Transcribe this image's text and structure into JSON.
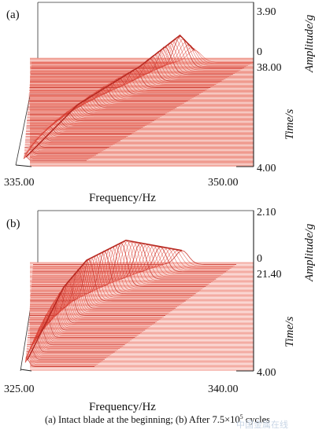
{
  "chart_data": [
    {
      "type": "waterfall",
      "panel_label": "(a)",
      "xlabel": "Frequency/Hz",
      "x_ticks": [
        "335.00",
        "350.00"
      ],
      "xlim": [
        335.0,
        350.0
      ],
      "ylabel": "Time/s",
      "y_ticks": [
        "38.00",
        "4.00"
      ],
      "ylim": [
        4.0,
        38.0
      ],
      "zlabel": "Amplitude/g",
      "z_ticks": [
        "3.90",
        "0"
      ],
      "zlim": [
        0,
        3.9
      ],
      "color": "#e0473a",
      "ridge": [
        {
          "time": 4,
          "freq": 335.6,
          "amp": 0.3
        },
        {
          "time": 20,
          "freq": 340.5,
          "amp": 0.8
        },
        {
          "time": 30,
          "freq": 344.0,
          "amp": 1.6
        },
        {
          "time": 36,
          "freq": 345.5,
          "amp": 2.7
        },
        {
          "time": 38,
          "freq": 346.0,
          "amp": 1.0
        }
      ]
    },
    {
      "type": "waterfall",
      "panel_label": "(b)",
      "xlabel": "Frequency/Hz",
      "x_ticks": [
        "325.00",
        "340.00"
      ],
      "xlim": [
        325.0,
        340.0
      ],
      "ylabel": "Time/s",
      "y_ticks": [
        "21.40",
        "4.00"
      ],
      "ylim": [
        4.0,
        21.4
      ],
      "zlabel": "Amplitude/g",
      "z_ticks": [
        "2.10",
        "0"
      ],
      "zlim": [
        0,
        2.1
      ],
      "color": "#e0473a",
      "ridge": [
        {
          "time": 4,
          "freq": 325.5,
          "amp": 0.3
        },
        {
          "time": 12,
          "freq": 329.0,
          "amp": 1.4
        },
        {
          "time": 15,
          "freq": 330.5,
          "amp": 1.8
        },
        {
          "time": 18,
          "freq": 333.0,
          "amp": 1.9
        },
        {
          "time": 21.4,
          "freq": 336.0,
          "amp": 0.6
        }
      ]
    }
  ],
  "caption": {
    "text_a": "(a) Intact blade at the beginning; (b) After",
    "number": "7.5",
    "times": "×10",
    "exponent": "5",
    "text_b": "cycles"
  },
  "watermark": "中国金属在线"
}
